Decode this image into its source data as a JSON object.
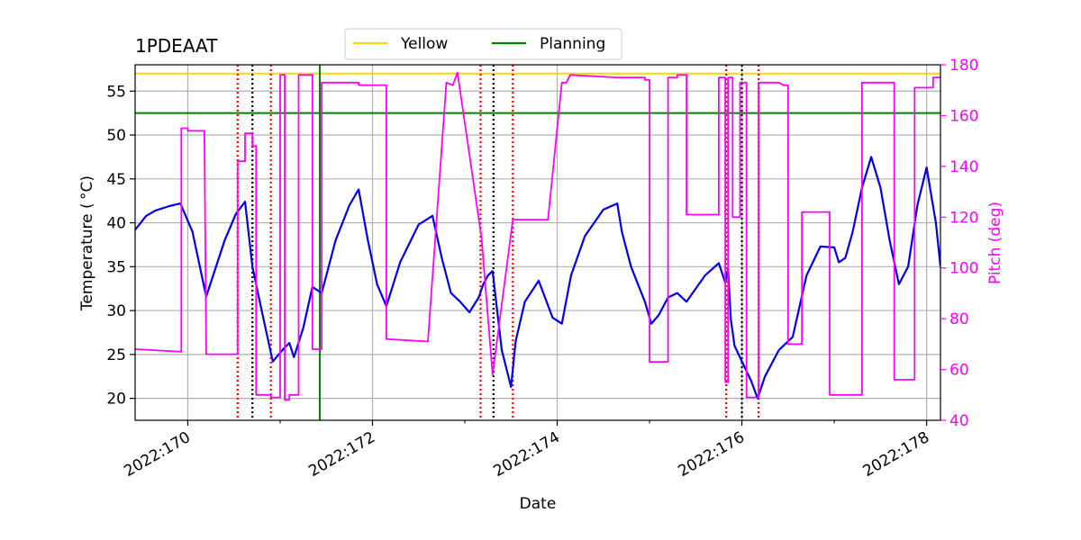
{
  "chart_data": {
    "type": "line",
    "title": "1PDEAAT",
    "xlabel": "Date",
    "ylabel_left": "Temperature ($^\\circ$C)",
    "ylabel_left_display": "Temperature ( °C)",
    "ylabel_right": "Pitch (deg)",
    "xlim": [
      169.43,
      178.15
    ],
    "ylim_left": [
      17.5,
      58
    ],
    "ylim_right": [
      40,
      180
    ],
    "x_ticks": [
      {
        "value": 170,
        "label": "2022:170"
      },
      {
        "value": 172,
        "label": "2022:172"
      },
      {
        "value": 174,
        "label": "2022:174"
      },
      {
        "value": 176,
        "label": "2022:176"
      },
      {
        "value": 178,
        "label": "2022:178"
      }
    ],
    "x_minor_ticks": [
      171,
      173,
      175,
      177
    ],
    "y_ticks_left": [
      20,
      25,
      30,
      35,
      40,
      45,
      50,
      55
    ],
    "y_ticks_right": [
      40,
      60,
      80,
      100,
      120,
      140,
      160,
      180
    ],
    "grid": true,
    "legend": {
      "location": "top-center",
      "entries": [
        {
          "name": "Yellow",
          "color": "#ffd700"
        },
        {
          "name": "Planning",
          "color": "#008000"
        }
      ]
    },
    "limit_lines": [
      {
        "name": "Yellow",
        "value": 57,
        "color": "#ffd700"
      },
      {
        "name": "Planning",
        "value": 52.5,
        "color": "#008000"
      }
    ],
    "vertical_lines": [
      {
        "x": 170.54,
        "style": "dotted",
        "color": "#ff0000"
      },
      {
        "x": 170.7,
        "style": "dotted",
        "color": "#000000"
      },
      {
        "x": 170.9,
        "style": "dotted",
        "color": "#ff0000"
      },
      {
        "x": 171.43,
        "style": "solid",
        "color": "#008000"
      },
      {
        "x": 173.17,
        "style": "dotted",
        "color": "#ff0000"
      },
      {
        "x": 173.31,
        "style": "dotted",
        "color": "#000000"
      },
      {
        "x": 173.52,
        "style": "dotted",
        "color": "#ff0000"
      },
      {
        "x": 175.83,
        "style": "dotted",
        "color": "#ff0000"
      },
      {
        "x": 176.0,
        "style": "dotted",
        "color": "#000000"
      },
      {
        "x": 176.18,
        "style": "dotted",
        "color": "#ff0000"
      }
    ],
    "series": [
      {
        "name": "Temperature",
        "axis": "left",
        "color": "#0000ee",
        "x": [
          169.43,
          169.55,
          169.65,
          169.8,
          169.92,
          170.05,
          170.2,
          170.4,
          170.52,
          170.62,
          170.7,
          170.8,
          170.92,
          171.05,
          171.1,
          171.15,
          171.25,
          171.35,
          171.45,
          171.6,
          171.75,
          171.85,
          171.95,
          172.05,
          172.15,
          172.3,
          172.5,
          172.65,
          172.75,
          172.85,
          172.95,
          173.05,
          173.15,
          173.2,
          173.25,
          173.3,
          173.4,
          173.5,
          173.55,
          173.65,
          173.8,
          173.95,
          174.05,
          174.15,
          174.3,
          174.5,
          174.65,
          174.7,
          174.8,
          174.95,
          175.02,
          175.1,
          175.2,
          175.3,
          175.4,
          175.5,
          175.6,
          175.75,
          175.82,
          175.85,
          175.88,
          175.92,
          176.0,
          176.1,
          176.17,
          176.25,
          176.4,
          176.55,
          176.7,
          176.85,
          177.0,
          177.05,
          177.12,
          177.2,
          177.3,
          177.4,
          177.5,
          177.6,
          177.7,
          177.8,
          177.9,
          178.0,
          178.1,
          178.15
        ],
        "values": [
          39.2,
          40.8,
          41.4,
          41.9,
          42.2,
          39.0,
          31.6,
          38.0,
          41.0,
          42.4,
          35.0,
          30.0,
          24.2,
          25.8,
          26.3,
          24.7,
          28.0,
          32.7,
          32.0,
          38.0,
          42.0,
          43.8,
          38.0,
          33.0,
          30.5,
          35.5,
          39.8,
          40.8,
          36.0,
          32.0,
          31.0,
          29.8,
          31.5,
          33.0,
          34.0,
          34.5,
          25.5,
          21.3,
          26.5,
          31.0,
          33.4,
          29.2,
          28.5,
          34.0,
          38.5,
          41.5,
          42.2,
          39.0,
          35.0,
          31.0,
          28.5,
          29.5,
          31.5,
          32.0,
          31.0,
          32.5,
          34.0,
          35.4,
          33.2,
          34.8,
          29.0,
          26.0,
          24.2,
          22.0,
          20.0,
          22.5,
          25.5,
          27.0,
          34.0,
          37.3,
          37.2,
          35.5,
          36.0,
          39.0,
          44.0,
          47.5,
          44.0,
          38.0,
          33.0,
          35.0,
          42.0,
          46.3,
          40.0,
          35.0
        ]
      },
      {
        "name": "Pitch",
        "axis": "right",
        "color": "#ff00ff",
        "x": [
          169.43,
          169.93,
          169.93,
          170.0,
          170.0,
          170.18,
          170.2,
          170.2,
          170.54,
          170.54,
          170.62,
          170.62,
          170.7,
          170.7,
          170.74,
          170.74,
          170.9,
          170.9,
          171.0,
          171.0,
          171.05,
          171.05,
          171.1,
          171.1,
          171.2,
          171.2,
          171.35,
          171.35,
          171.45,
          171.45,
          171.85,
          171.85,
          171.95,
          172.05,
          172.12,
          172.15,
          172.15,
          172.6,
          172.6,
          172.8,
          172.8,
          172.87,
          172.87,
          172.92,
          172.92,
          173.18,
          173.18,
          173.3,
          173.3,
          173.52,
          173.52,
          173.9,
          173.9,
          174.05,
          174.05,
          174.1,
          174.1,
          174.14,
          174.14,
          174.65,
          174.68,
          174.68,
          174.9,
          174.9,
          174.95,
          174.95,
          175.0,
          175.0,
          175.2,
          175.2,
          175.3,
          175.3,
          175.4,
          175.4,
          175.75,
          175.75,
          175.82,
          175.82,
          175.85,
          175.85,
          175.9,
          175.9,
          175.98,
          175.98,
          176.05,
          176.05,
          176.18,
          176.18,
          176.4,
          176.45,
          176.5,
          176.5,
          176.65,
          176.65,
          176.95,
          176.95,
          177.02,
          177.02,
          177.3,
          177.3,
          177.6,
          177.65,
          177.65,
          177.87,
          177.87,
          177.95,
          177.95,
          178.07,
          178.07,
          178.15
        ],
        "values": [
          68,
          67,
          155,
          155,
          154,
          154,
          67,
          66,
          66,
          142,
          142,
          153,
          153,
          148,
          148,
          50,
          50,
          49,
          49,
          176,
          176,
          48,
          48,
          50,
          50,
          176,
          176,
          68,
          68,
          173,
          173,
          172,
          172,
          172,
          172,
          172,
          72,
          71,
          71,
          173,
          173,
          172,
          172,
          177,
          177,
          112,
          112,
          58,
          58,
          119,
          119,
          119,
          119,
          173,
          173,
          173,
          173,
          176,
          176,
          175,
          175,
          175,
          175,
          175,
          175,
          174,
          174,
          63,
          63,
          175,
          175,
          176,
          176,
          121,
          121,
          175,
          175,
          55,
          55,
          175,
          175,
          120,
          120,
          173,
          173,
          49,
          49,
          173,
          173,
          172,
          172,
          70,
          70,
          122,
          122,
          50,
          50,
          50,
          50,
          173,
          173,
          173,
          56,
          56,
          171,
          171,
          171,
          171,
          175,
          175
        ]
      }
    ]
  }
}
